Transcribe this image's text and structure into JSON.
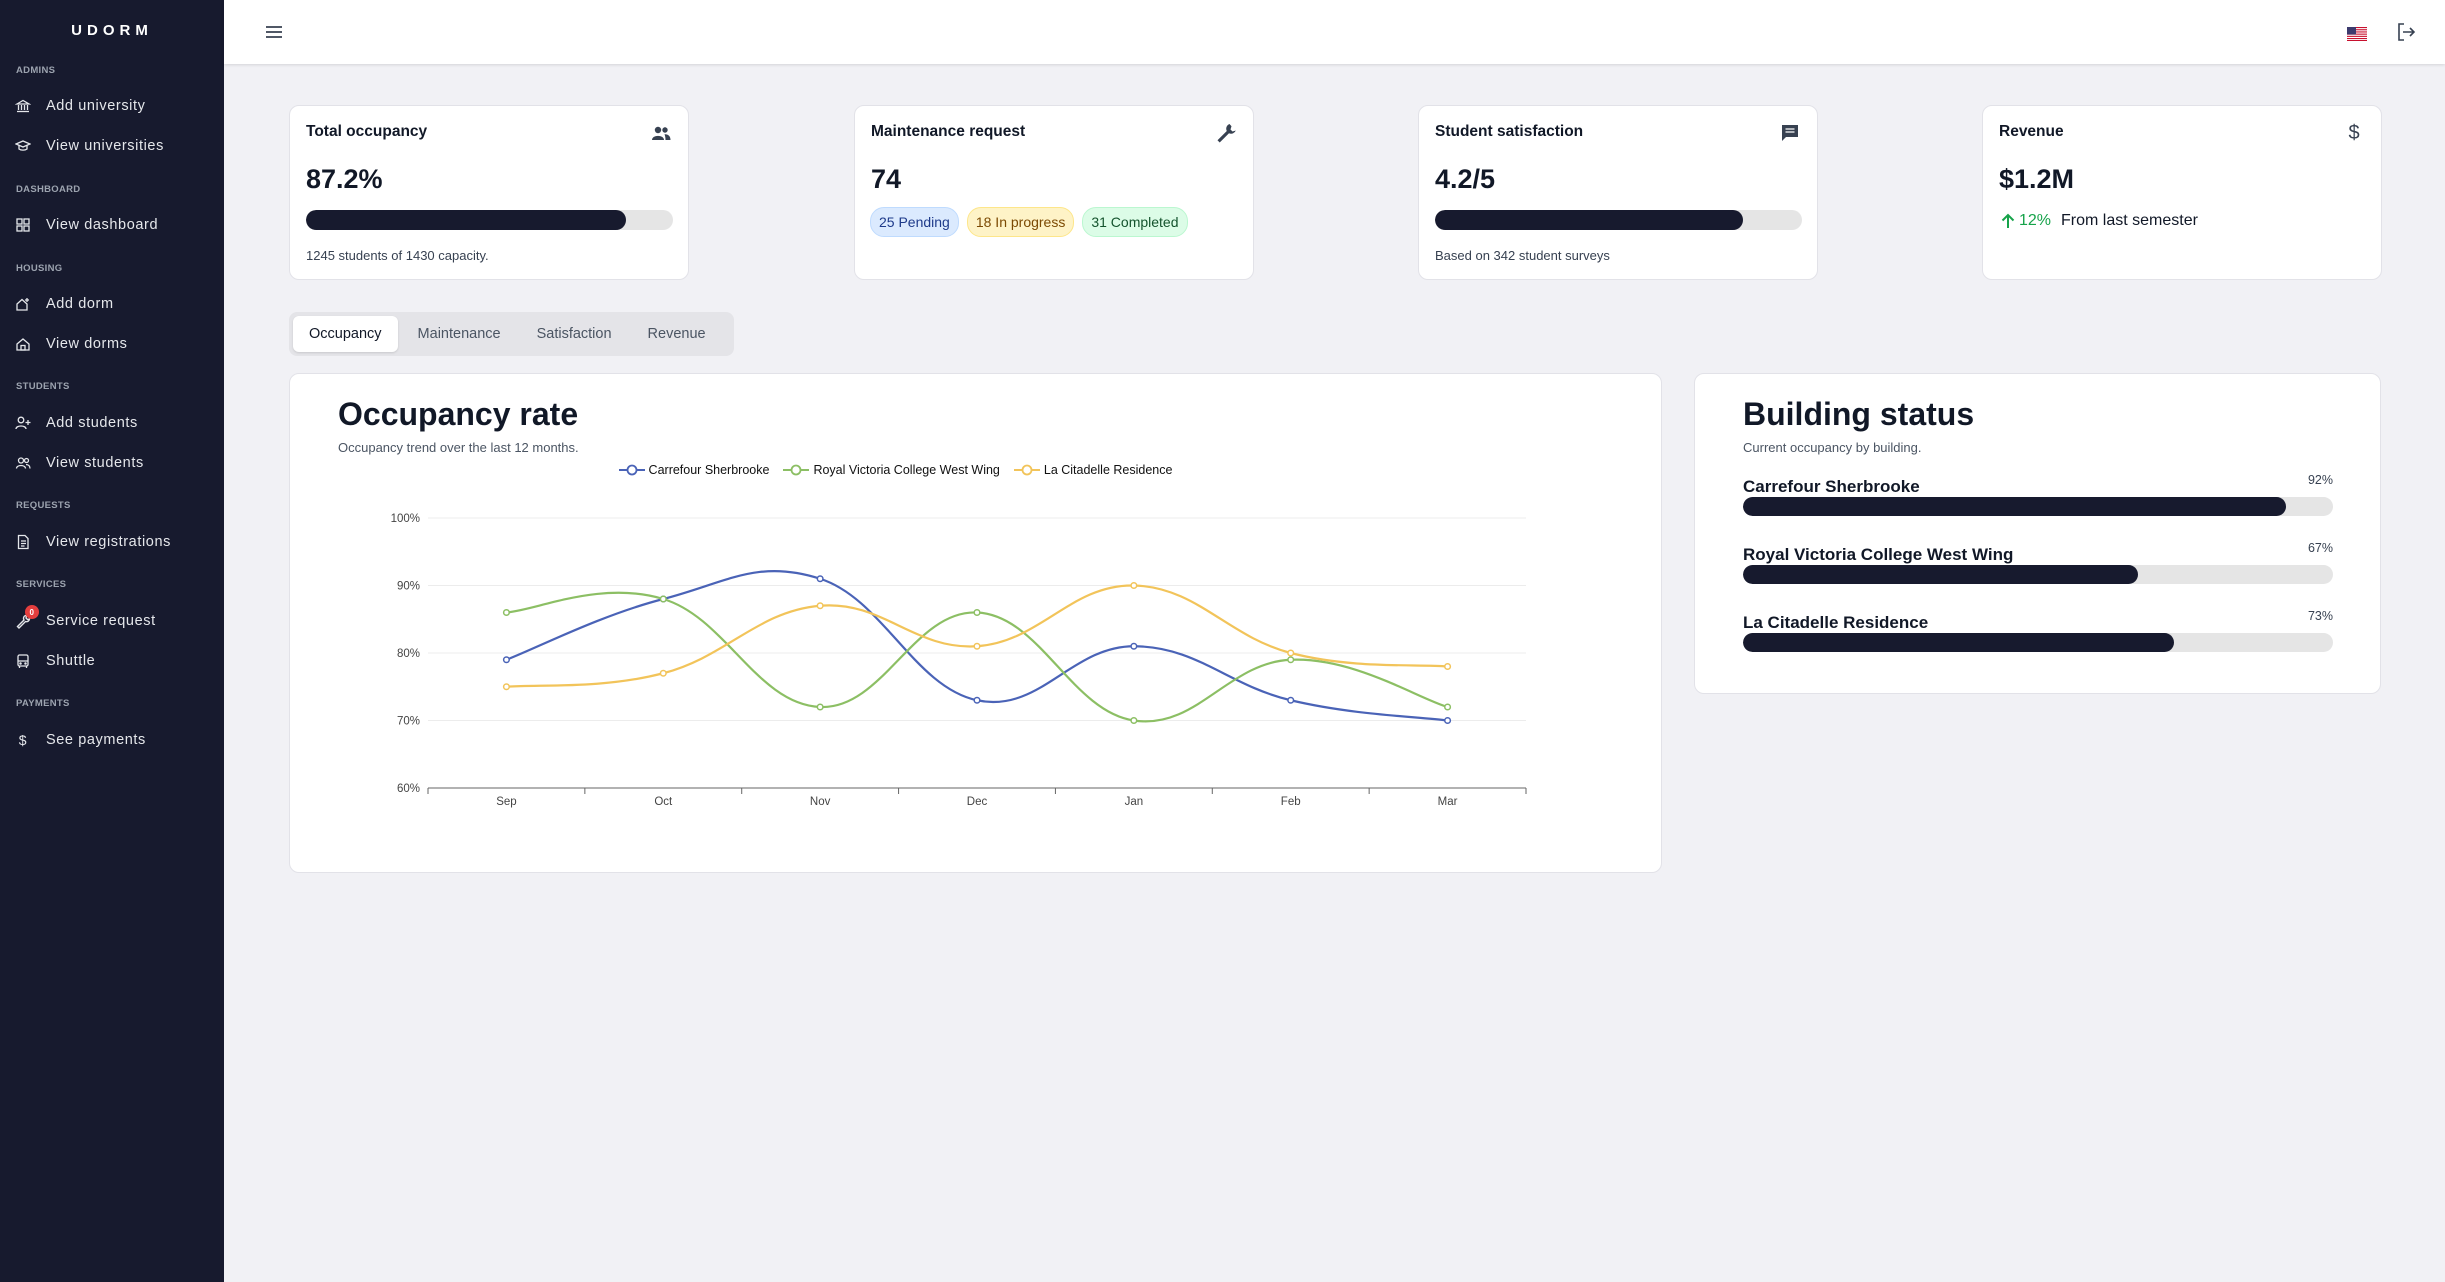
{
  "app": {
    "logo": "UDORM"
  },
  "sidebar": {
    "sections": [
      {
        "title": "ADMINS",
        "items": [
          {
            "label": "Add university",
            "icon": "bank-icon"
          },
          {
            "label": "View universities",
            "icon": "graduation-cap-icon"
          }
        ]
      },
      {
        "title": "DASHBOARD",
        "items": [
          {
            "label": "View dashboard",
            "icon": "dashboard-icon"
          }
        ]
      },
      {
        "title": "HOUSING",
        "items": [
          {
            "label": "Add dorm",
            "icon": "home-add-icon"
          },
          {
            "label": "View dorms",
            "icon": "home-icon"
          }
        ]
      },
      {
        "title": "STUDENTS",
        "items": [
          {
            "label": "Add students",
            "icon": "user-add-icon"
          },
          {
            "label": "View students",
            "icon": "users-icon"
          }
        ]
      },
      {
        "title": "REQUESTS",
        "items": [
          {
            "label": "View registrations",
            "icon": "document-icon"
          }
        ]
      },
      {
        "title": "SERVICES",
        "items": [
          {
            "label": "Service request",
            "icon": "wrench-icon",
            "badge": "0"
          },
          {
            "label": "Shuttle",
            "icon": "bus-icon"
          }
        ]
      },
      {
        "title": "PAYMENTS",
        "items": [
          {
            "label": "See payments",
            "icon": "dollar-icon"
          }
        ]
      }
    ]
  },
  "topbar": {
    "menu_icon": "hamburger-icon",
    "flag_icon": "us-flag-icon",
    "logout_icon": "logout-icon"
  },
  "kpis": {
    "occupancy": {
      "title": "Total occupancy",
      "value": "87.2%",
      "progress": 0.872,
      "sub": "1245 students of 1430 capacity.",
      "icon": "users-icon"
    },
    "maintenance": {
      "title": "Maintenance request",
      "value": "74",
      "pending": "25 Pending",
      "in_progress": "18 In progress",
      "completed": "31 Completed",
      "icon": "wrench-icon"
    },
    "satisfaction": {
      "title": "Student satisfaction",
      "value": "4.2/5",
      "progress": 0.84,
      "sub": "Based on 342 student surveys",
      "icon": "chat-icon"
    },
    "revenue": {
      "title": "Revenue",
      "value": "$1.2M",
      "change": "12%",
      "change_label": "From last semester",
      "icon": "dollar-icon"
    }
  },
  "tabs": [
    "Occupancy",
    "Maintenance",
    "Satisfaction",
    "Revenue"
  ],
  "occupancy_panel": {
    "title": "Occupancy rate",
    "subtitle": "Occupancy trend over the last 12 months."
  },
  "chart_data": {
    "type": "line",
    "x": [
      "Sep",
      "Oct",
      "Nov",
      "Dec",
      "Jan",
      "Feb",
      "Mar"
    ],
    "ylim": [
      60,
      100
    ],
    "yticks": [
      "60%",
      "70%",
      "80%",
      "90%",
      "100%"
    ],
    "grid": true,
    "legend": "top",
    "series": [
      {
        "name": "Carrefour Sherbrooke",
        "color": "#4a63b7",
        "values": [
          79,
          88,
          91,
          73,
          81,
          73,
          70
        ]
      },
      {
        "name": "Royal Victoria College West Wing",
        "color": "#8cbf64",
        "values": [
          86,
          88,
          72,
          86,
          70,
          79,
          72
        ]
      },
      {
        "name": "La Citadelle Residence",
        "color": "#f2c45a",
        "values": [
          75,
          77,
          87,
          81,
          90,
          80,
          78
        ]
      }
    ]
  },
  "building_status": {
    "title": "Building status",
    "subtitle": "Current occupancy by building.",
    "rows": [
      {
        "name": "Carrefour Sherbrooke",
        "pct": "92%",
        "value": 0.92
      },
      {
        "name": "Royal Victoria College West Wing",
        "pct": "67%",
        "value": 0.67
      },
      {
        "name": "La Citadelle Residence",
        "pct": "73%",
        "value": 0.73
      }
    ]
  }
}
